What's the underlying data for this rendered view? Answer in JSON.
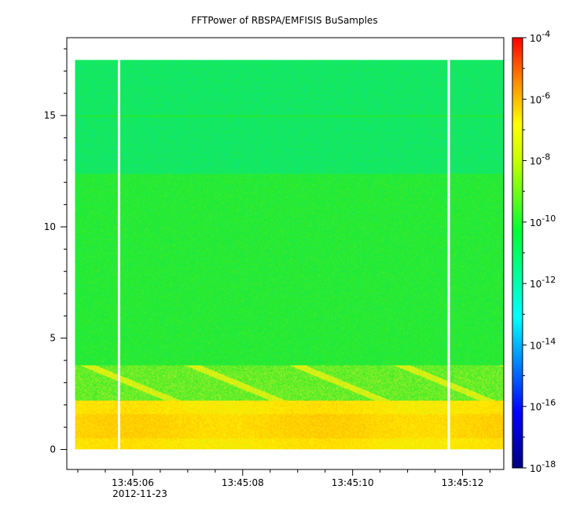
{
  "chart_data": {
    "type": "heatmap",
    "title": "FFTPower of RBSPA/EMFISIS  BuSamples",
    "xlabel": "",
    "ylabel": "",
    "x_axis": {
      "ticks": [
        "13:45:06",
        "13:45:08",
        "13:45:10",
        "13:45:12"
      ],
      "tick_seconds": [
        6,
        8,
        10,
        12
      ],
      "xlim_seconds": [
        4.8,
        12.75
      ],
      "date_label": "2012-11-23"
    },
    "y_axis": {
      "ticks": [
        "0",
        "5",
        "10",
        "15"
      ],
      "tick_values": [
        0,
        5,
        10,
        15
      ],
      "ylim": [
        -0.9,
        18.5
      ]
    },
    "colorbar": {
      "scale": "log",
      "range": [
        1e-18,
        0.0001
      ],
      "ticks": [
        {
          "base": "10",
          "exp": "-4",
          "value": -4
        },
        {
          "base": "10",
          "exp": "-6",
          "value": -6
        },
        {
          "base": "10",
          "exp": "-8",
          "value": -8
        },
        {
          "base": "10",
          "exp": "-10",
          "value": -10
        },
        {
          "base": "10",
          "exp": "-12",
          "value": -12
        },
        {
          "base": "10",
          "exp": "-14",
          "value": -14
        },
        {
          "base": "10",
          "exp": "-16",
          "value": -16
        },
        {
          "base": "10",
          "exp": "-18",
          "value": -18
        }
      ]
    },
    "data_extent": {
      "x_seconds": [
        4.95,
        12.75
      ],
      "y": [
        0.0,
        17.5
      ]
    },
    "data_gaps_seconds": [
      5.75,
      11.75
    ],
    "bands": [
      {
        "y": [
          12.4,
          17.5
        ],
        "log_power": -11.0
      },
      {
        "y": [
          3.8,
          12.4
        ],
        "log_power": -10.2
      },
      {
        "y": [
          2.2,
          3.8
        ],
        "log_power": -9.5
      },
      {
        "y": [
          0.0,
          2.2
        ],
        "log_power": -7.8
      }
    ],
    "line_feature": {
      "y": 15.0,
      "log_power": -10.4
    }
  }
}
